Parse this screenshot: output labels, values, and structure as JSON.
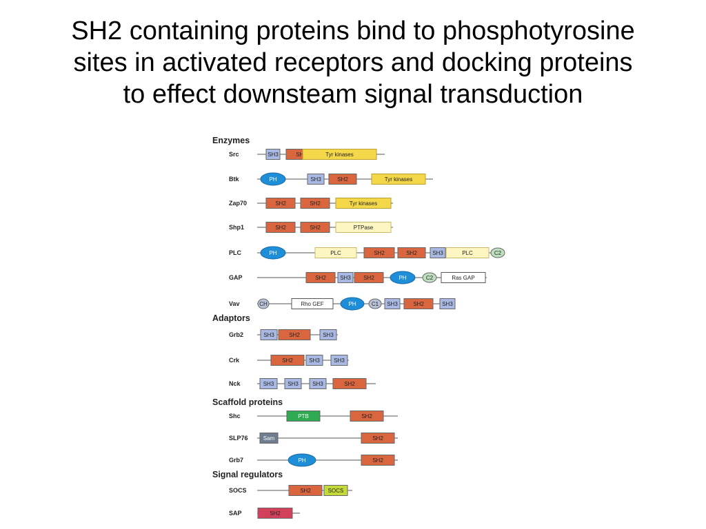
{
  "title": {
    "lines": [
      "SH2 containing proteins bind to phosphotyrosine",
      "sites in activated receptors and docking proteins",
      "to effect downsteam signal transduction"
    ]
  },
  "colors": {
    "SH2": "#d9663f",
    "SH3": "#a9b9e3",
    "Tyr": "#f5d84a",
    "PH": "#1f8ed8",
    "PLC": "#fdf6c2",
    "PTPase": "#fdf6c2",
    "RhoGEF": "#ffffff",
    "RasGAP": "#ffffff",
    "C2": "#bfe0bf",
    "C1": "#b9c3d8",
    "CH": "#b9c3d8",
    "PTB": "#2eaa52",
    "Sam": "#6f7d91",
    "SOCS": "#c4d93a",
    "SAP_SH2": "#d3405a"
  },
  "categories": [
    {
      "label": "Enzymes",
      "proteins": [
        {
          "name": "Src",
          "domains": [
            {
              "label": "SH3",
              "kind": "SH3",
              "shape": "box"
            },
            {
              "label": "SH2",
              "kind": "SH2",
              "shape": "box"
            },
            {
              "label": "Tyr kinases",
              "kind": "Tyr",
              "shape": "box"
            }
          ]
        },
        {
          "name": "Btk",
          "domains": [
            {
              "label": "PH",
              "kind": "PH",
              "shape": "ellipse"
            },
            {
              "label": "SH3",
              "kind": "SH3",
              "shape": "box"
            },
            {
              "label": "SH2",
              "kind": "SH2",
              "shape": "box"
            },
            {
              "label": "Tyr kinases",
              "kind": "Tyr",
              "shape": "box"
            }
          ]
        },
        {
          "name": "Zap70",
          "domains": [
            {
              "label": "SH2",
              "kind": "SH2",
              "shape": "box"
            },
            {
              "label": "SH2",
              "kind": "SH2",
              "shape": "box"
            },
            {
              "label": "Tyr kinases",
              "kind": "Tyr",
              "shape": "box"
            }
          ]
        },
        {
          "name": "Shp1",
          "domains": [
            {
              "label": "SH2",
              "kind": "SH2",
              "shape": "box"
            },
            {
              "label": "SH2",
              "kind": "SH2",
              "shape": "box"
            },
            {
              "label": "PTPase",
              "kind": "PTPase",
              "shape": "box"
            }
          ]
        },
        {
          "name": "PLC",
          "domains": [
            {
              "label": "PH",
              "kind": "PH",
              "shape": "ellipse"
            },
            {
              "label": "PLC",
              "kind": "PLC",
              "shape": "box"
            },
            {
              "label": "SH2",
              "kind": "SH2",
              "shape": "box"
            },
            {
              "label": "SH2",
              "kind": "SH2",
              "shape": "box"
            },
            {
              "label": "SH3",
              "kind": "SH3",
              "shape": "box"
            },
            {
              "label": "PLC",
              "kind": "PLC",
              "shape": "box"
            },
            {
              "label": "C2",
              "kind": "C2",
              "shape": "ellipse"
            }
          ]
        },
        {
          "name": "GAP",
          "domains": [
            {
              "label": "SH2",
              "kind": "SH2",
              "shape": "box"
            },
            {
              "label": "SH3",
              "kind": "SH3",
              "shape": "box"
            },
            {
              "label": "SH2",
              "kind": "SH2",
              "shape": "box"
            },
            {
              "label": "PH",
              "kind": "PH",
              "shape": "ellipse"
            },
            {
              "label": "C2",
              "kind": "C2",
              "shape": "ellipse"
            },
            {
              "label": "Ras GAP",
              "kind": "RasGAP",
              "shape": "box"
            }
          ]
        },
        {
          "name": "Vav",
          "domains": [
            {
              "label": "CH",
              "kind": "CH",
              "shape": "ellipse"
            },
            {
              "label": "Rho GEF",
              "kind": "RhoGEF",
              "shape": "box"
            },
            {
              "label": "PH",
              "kind": "PH",
              "shape": "ellipse"
            },
            {
              "label": "C1",
              "kind": "C1",
              "shape": "ellipse"
            },
            {
              "label": "SH3",
              "kind": "SH3",
              "shape": "box"
            },
            {
              "label": "SH2",
              "kind": "SH2",
              "shape": "box"
            },
            {
              "label": "SH3",
              "kind": "SH3",
              "shape": "box"
            }
          ]
        }
      ]
    },
    {
      "label": "Adaptors",
      "proteins": [
        {
          "name": "Grb2",
          "domains": [
            {
              "label": "SH3",
              "kind": "SH3",
              "shape": "box"
            },
            {
              "label": "SH2",
              "kind": "SH2",
              "shape": "box"
            },
            {
              "label": "SH3",
              "kind": "SH3",
              "shape": "box"
            }
          ]
        },
        {
          "name": "Crk",
          "domains": [
            {
              "label": "SH2",
              "kind": "SH2",
              "shape": "box"
            },
            {
              "label": "SH3",
              "kind": "SH3",
              "shape": "box"
            },
            {
              "label": "SH3",
              "kind": "SH3",
              "shape": "box"
            }
          ]
        },
        {
          "name": "Nck",
          "domains": [
            {
              "label": "SH3",
              "kind": "SH3",
              "shape": "box"
            },
            {
              "label": "SH3",
              "kind": "SH3",
              "shape": "box"
            },
            {
              "label": "SH3",
              "kind": "SH3",
              "shape": "box"
            },
            {
              "label": "SH2",
              "kind": "SH2",
              "shape": "box"
            }
          ]
        }
      ]
    },
    {
      "label": "Scaffold proteins",
      "proteins": [
        {
          "name": "Shc",
          "domains": [
            {
              "label": "PTB",
              "kind": "PTB",
              "shape": "box"
            },
            {
              "label": "SH2",
              "kind": "SH2",
              "shape": "box"
            }
          ]
        },
        {
          "name": "SLP76",
          "domains": [
            {
              "label": "Sam",
              "kind": "Sam",
              "shape": "box"
            },
            {
              "label": "SH2",
              "kind": "SH2",
              "shape": "box"
            }
          ]
        },
        {
          "name": "Grb7",
          "domains": [
            {
              "label": "PH",
              "kind": "PH",
              "shape": "ellipse"
            },
            {
              "label": "SH2",
              "kind": "SH2",
              "shape": "box"
            }
          ]
        }
      ]
    },
    {
      "label": "Signal regulators",
      "proteins": [
        {
          "name": "SOCS",
          "domains": [
            {
              "label": "SH2",
              "kind": "SH2",
              "shape": "box"
            },
            {
              "label": "SOCS",
              "kind": "SOCS",
              "shape": "box"
            }
          ]
        },
        {
          "name": "SAP",
          "domains": [
            {
              "label": "SH2",
              "kind": "SAP_SH2",
              "shape": "box"
            }
          ]
        }
      ]
    }
  ]
}
